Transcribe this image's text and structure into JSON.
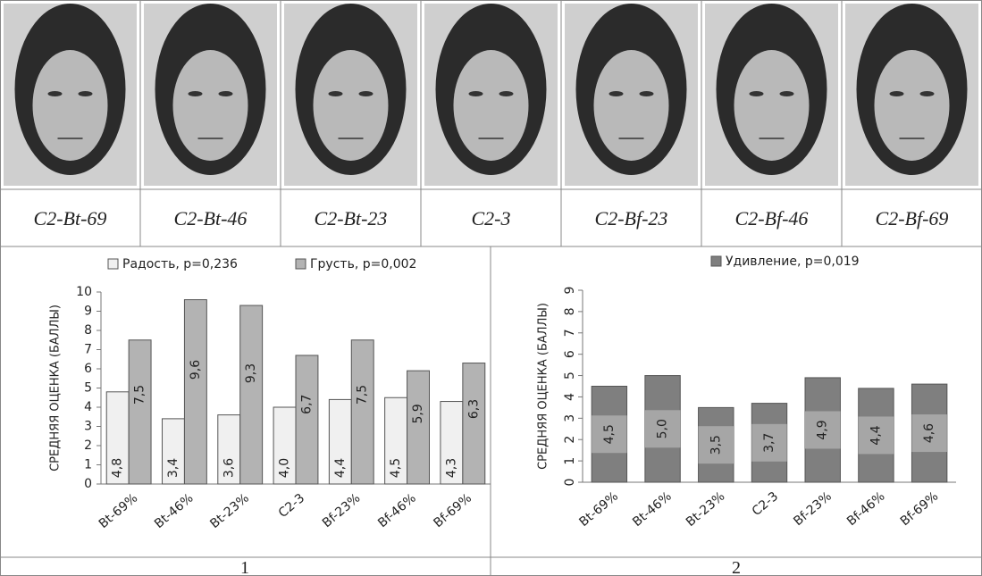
{
  "faces": {
    "labels": [
      "C2-Bt-69",
      "C2-Bt-46",
      "C2-Bt-23",
      "C2-3",
      "C2-Bf-23",
      "C2-Bf-46",
      "C2-Bf-69"
    ]
  },
  "panel_labels": [
    "1",
    "2"
  ],
  "chart_data": [
    {
      "type": "bar",
      "ylabel": "СРЕДНЯЯ ОЦЕНКА (БАЛЛЫ)",
      "categories": [
        "Bt-69%",
        "Bt-46%",
        "Bt-23%",
        "C2-3",
        "Bf-23%",
        "Bf-46%",
        "Bf-69%"
      ],
      "series": [
        {
          "name": "Радость, p=0,236",
          "color": "#f0f0f0",
          "values": [
            4.8,
            3.4,
            3.6,
            4.0,
            4.4,
            4.5,
            4.3
          ],
          "value_labels": [
            "4,8",
            "3,4",
            "3,6",
            "4,0",
            "4,4",
            "4,5",
            "4,3"
          ]
        },
        {
          "name": "Грусть, p=0,002",
          "color": "#b3b3b3",
          "values": [
            7.5,
            9.6,
            9.3,
            6.7,
            7.5,
            5.9,
            6.3
          ],
          "value_labels": [
            "7,5",
            "9,6",
            "9,3",
            "6,7",
            "7,5",
            "5,9",
            "6,3"
          ]
        }
      ],
      "ylim": [
        0,
        10
      ],
      "yticks": [
        0,
        1,
        2,
        3,
        4,
        5,
        6,
        7,
        8,
        9,
        10
      ],
      "legend": "top"
    },
    {
      "type": "bar",
      "ylabel": "СРЕДНЯЯ ОЦЕНКА (БАЛЛЫ)",
      "categories": [
        "Bt-69%",
        "Bt-46%",
        "Bt-23%",
        "C2-3",
        "Bf-23%",
        "Bf-46%",
        "Bf-69%"
      ],
      "series": [
        {
          "name": "Удивление, p=0,019",
          "color": "#7f7f7f",
          "values": [
            4.5,
            5.0,
            3.5,
            3.7,
            4.9,
            4.4,
            4.6
          ],
          "value_labels": [
            "4,5",
            "5,0",
            "3,5",
            "3,7",
            "4,9",
            "4,4",
            "4,6"
          ]
        }
      ],
      "ylim": [
        0,
        9
      ],
      "yticks": [
        0,
        1,
        2,
        3,
        4,
        5,
        6,
        7,
        8,
        9
      ],
      "legend": "top"
    }
  ]
}
